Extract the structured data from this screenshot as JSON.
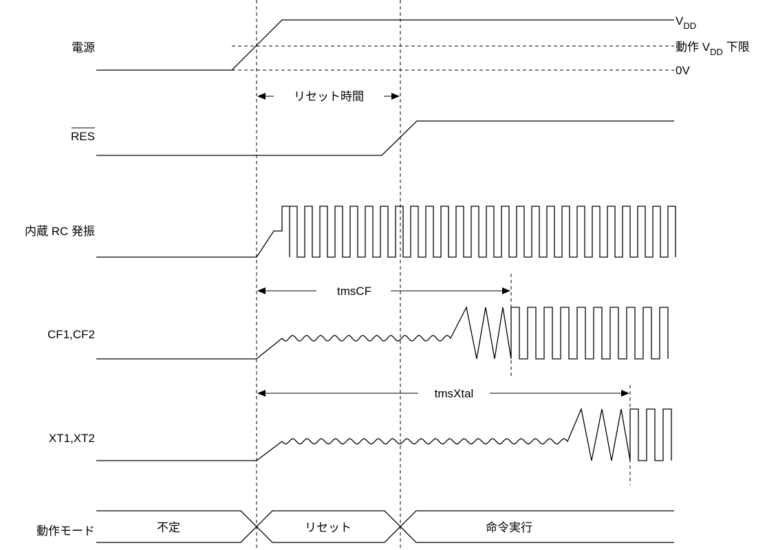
{
  "signals": {
    "power": "電源",
    "res": "RES",
    "rc_osc": "内蔵 RC 発振",
    "cf": "CF1,CF2",
    "xt": "XT1,XT2",
    "mode": "動作モード"
  },
  "levels": {
    "vdd_main": "V",
    "vdd_sub": "DD",
    "vmin_prefix": "動作 V",
    "vmin_sub": "DD",
    "vmin_suffix": " 下限",
    "zero": "0V"
  },
  "intervals": {
    "reset_time": "リセット時間",
    "tmscf": "tmsCF",
    "tmsxtal": "tmsXtal"
  },
  "modes": {
    "undefined": "不定",
    "reset": "リセット",
    "execute": "命令実行"
  }
}
